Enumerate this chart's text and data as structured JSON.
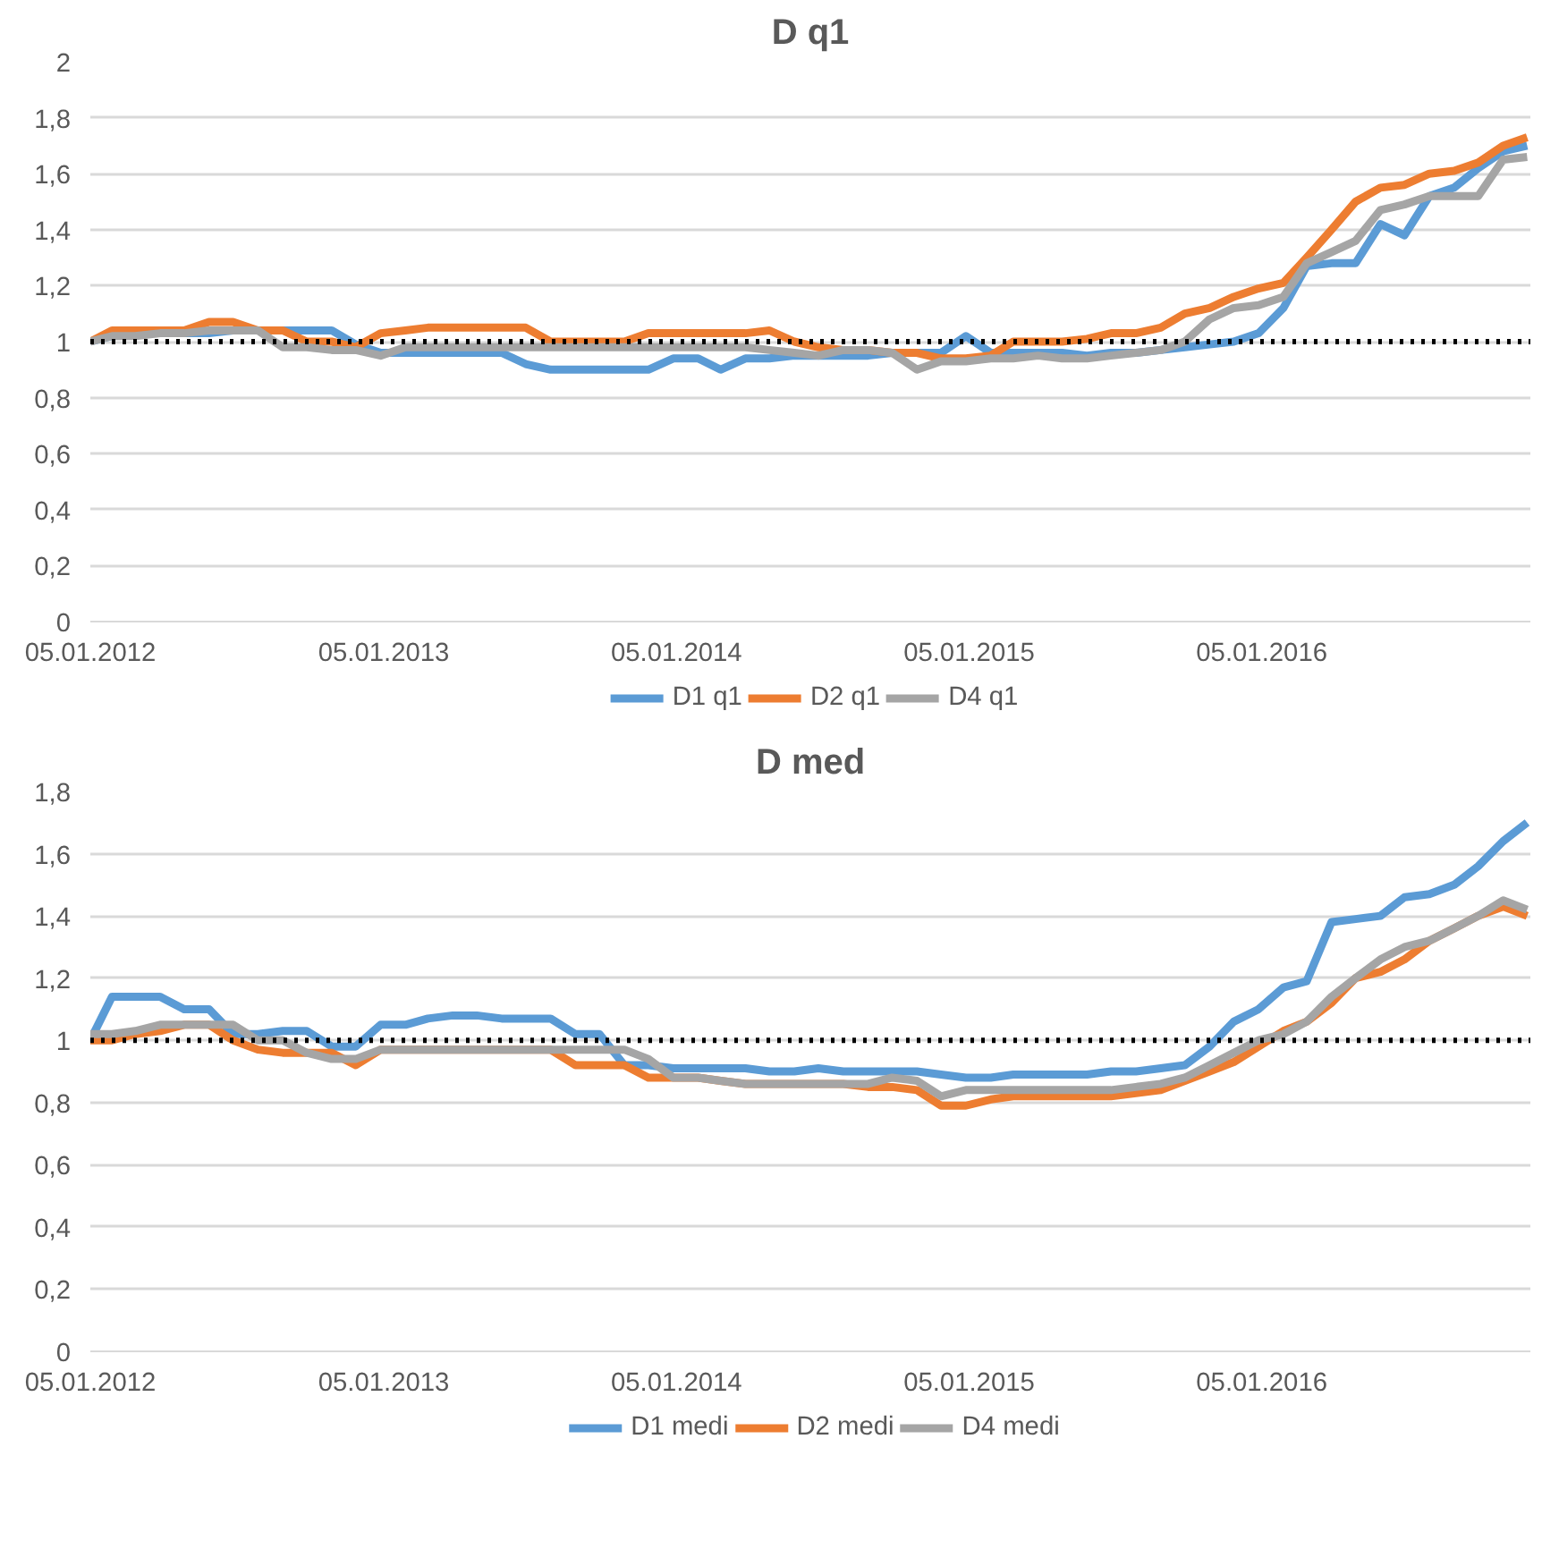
{
  "chart_data": [
    {
      "type": "line",
      "title": "D q1",
      "x": [
        "2012-01-05",
        "2012-02",
        "2012-03",
        "2012-04",
        "2012-05",
        "2012-06",
        "2012-07",
        "2012-08",
        "2012-09",
        "2012-10",
        "2012-11",
        "2012-12",
        "2013-01",
        "2013-02",
        "2013-03",
        "2013-04",
        "2013-05",
        "2013-06",
        "2013-07",
        "2013-08",
        "2013-09",
        "2013-10",
        "2013-11",
        "2013-12",
        "2014-01",
        "2014-02",
        "2014-03",
        "2014-04",
        "2014-05",
        "2014-06",
        "2014-07",
        "2014-08",
        "2014-09",
        "2014-10",
        "2014-11",
        "2014-12",
        "2015-01",
        "2015-02",
        "2015-03",
        "2015-04",
        "2015-05",
        "2015-06",
        "2015-07",
        "2015-08",
        "2015-09",
        "2015-10",
        "2015-11",
        "2015-12",
        "2016-01",
        "2016-02",
        "2016-03",
        "2016-04",
        "2016-05",
        "2016-06",
        "2016-07",
        "2016-08",
        "2016-09",
        "2016-10",
        "2016-11",
        "2016-12"
      ],
      "series": [
        {
          "name": "D1 q1",
          "color": "#5b9bd5",
          "values": [
            1.0,
            1.02,
            1.03,
            1.03,
            1.03,
            1.03,
            1.04,
            1.04,
            1.04,
            1.04,
            1.04,
            0.99,
            0.96,
            0.96,
            0.96,
            0.96,
            0.96,
            0.96,
            0.92,
            0.9,
            0.9,
            0.9,
            0.9,
            0.9,
            0.94,
            0.94,
            0.9,
            0.94,
            0.94,
            0.95,
            0.95,
            0.95,
            0.95,
            0.96,
            0.96,
            0.96,
            1.02,
            0.96,
            0.96,
            0.96,
            0.96,
            0.95,
            0.96,
            0.96,
            0.97,
            0.98,
            0.99,
            1.0,
            1.03,
            1.12,
            1.27,
            1.28,
            1.28,
            1.42,
            1.38,
            1.52,
            1.55,
            1.62,
            1.68,
            1.7
          ]
        },
        {
          "name": "D2 q1",
          "color": "#ed7d31",
          "values": [
            1.0,
            1.04,
            1.04,
            1.04,
            1.04,
            1.07,
            1.07,
            1.04,
            1.04,
            1.0,
            1.0,
            0.98,
            1.03,
            1.04,
            1.05,
            1.05,
            1.05,
            1.05,
            1.05,
            1.0,
            1.0,
            1.0,
            1.0,
            1.03,
            1.03,
            1.03,
            1.03,
            1.03,
            1.04,
            1.0,
            0.98,
            0.97,
            0.97,
            0.96,
            0.96,
            0.94,
            0.94,
            0.95,
            1.0,
            1.0,
            1.0,
            1.01,
            1.03,
            1.03,
            1.05,
            1.1,
            1.12,
            1.16,
            1.19,
            1.21,
            1.3,
            1.4,
            1.5,
            1.55,
            1.56,
            1.6,
            1.61,
            1.64,
            1.7,
            1.73
          ]
        },
        {
          "name": "D4 q1",
          "color": "#a5a5a5",
          "values": [
            1.0,
            1.02,
            1.02,
            1.03,
            1.03,
            1.04,
            1.04,
            1.04,
            0.98,
            0.98,
            0.97,
            0.97,
            0.95,
            0.98,
            0.98,
            0.98,
            0.98,
            0.98,
            0.98,
            0.98,
            0.98,
            0.98,
            0.98,
            0.98,
            0.98,
            0.98,
            0.98,
            0.98,
            0.97,
            0.96,
            0.95,
            0.97,
            0.97,
            0.96,
            0.9,
            0.93,
            0.93,
            0.94,
            0.94,
            0.95,
            0.94,
            0.94,
            0.95,
            0.96,
            0.97,
            1.0,
            1.08,
            1.12,
            1.13,
            1.16,
            1.28,
            1.32,
            1.36,
            1.47,
            1.49,
            1.52,
            1.52,
            1.52,
            1.65,
            1.66
          ]
        }
      ],
      "xlim": [
        "2012-01-05",
        "2016-12-05"
      ],
      "xticks": [
        {
          "value": "2012-01-05",
          "label": "05.01.2012"
        },
        {
          "value": "2013-01-05",
          "label": "05.01.2013"
        },
        {
          "value": "2014-01-05",
          "label": "05.01.2014"
        },
        {
          "value": "2015-01-05",
          "label": "05.01.2015"
        },
        {
          "value": "2016-01-05",
          "label": "05.01.2016"
        }
      ],
      "ylim": [
        0,
        2
      ],
      "yticks": [
        0,
        {
          "value": 0.2,
          "label": "0,2"
        },
        {
          "value": 0.4,
          "label": "0,4"
        },
        {
          "value": 0.6,
          "label": "0,6"
        },
        {
          "value": 0.8,
          "label": "0,8"
        },
        1,
        {
          "value": 1.2,
          "label": "1,2"
        },
        {
          "value": 1.4,
          "label": "1,4"
        },
        {
          "value": 1.6,
          "label": "1,6"
        },
        {
          "value": 1.8,
          "label": "1,8"
        },
        2
      ],
      "ref_lines": [
        {
          "axis": "y",
          "value": 1,
          "color": "#000000",
          "line_style": "dotted"
        }
      ],
      "grid": "y",
      "legend": "bottom",
      "marker": "none",
      "line_style": "solid"
    },
    {
      "type": "line",
      "title": "D med",
      "x": [
        "2012-01-05",
        "2012-02",
        "2012-03",
        "2012-04",
        "2012-05",
        "2012-06",
        "2012-07",
        "2012-08",
        "2012-09",
        "2012-10",
        "2012-11",
        "2012-12",
        "2013-01",
        "2013-02",
        "2013-03",
        "2013-04",
        "2013-05",
        "2013-06",
        "2013-07",
        "2013-08",
        "2013-09",
        "2013-10",
        "2013-11",
        "2013-12",
        "2014-01",
        "2014-02",
        "2014-03",
        "2014-04",
        "2014-05",
        "2014-06",
        "2014-07",
        "2014-08",
        "2014-09",
        "2014-10",
        "2014-11",
        "2014-12",
        "2015-01",
        "2015-02",
        "2015-03",
        "2015-04",
        "2015-05",
        "2015-06",
        "2015-07",
        "2015-08",
        "2015-09",
        "2015-10",
        "2015-11",
        "2015-12",
        "2016-01",
        "2016-02",
        "2016-03",
        "2016-04",
        "2016-05",
        "2016-06",
        "2016-07",
        "2016-08",
        "2016-09",
        "2016-10",
        "2016-11",
        "2016-12"
      ],
      "series": [
        {
          "name": "D1 medi",
          "color": "#5b9bd5",
          "values": [
            1.0,
            1.14,
            1.14,
            1.14,
            1.1,
            1.1,
            1.02,
            1.02,
            1.03,
            1.03,
            0.98,
            0.98,
            1.05,
            1.05,
            1.07,
            1.08,
            1.08,
            1.07,
            1.07,
            1.07,
            1.02,
            1.02,
            0.92,
            0.92,
            0.91,
            0.91,
            0.91,
            0.91,
            0.9,
            0.9,
            0.91,
            0.9,
            0.9,
            0.9,
            0.9,
            0.89,
            0.88,
            0.88,
            0.89,
            0.89,
            0.89,
            0.89,
            0.9,
            0.9,
            0.91,
            0.92,
            0.98,
            1.06,
            1.1,
            1.17,
            1.19,
            1.38,
            1.39,
            1.4,
            1.46,
            1.47,
            1.5,
            1.56,
            1.64,
            1.7
          ]
        },
        {
          "name": "D2 medi",
          "color": "#ed7d31",
          "values": [
            1.0,
            1.0,
            1.02,
            1.03,
            1.05,
            1.05,
            1.0,
            0.97,
            0.96,
            0.96,
            0.96,
            0.92,
            0.97,
            0.97,
            0.97,
            0.97,
            0.97,
            0.97,
            0.97,
            0.97,
            0.92,
            0.92,
            0.92,
            0.88,
            0.88,
            0.88,
            0.87,
            0.86,
            0.86,
            0.86,
            0.86,
            0.86,
            0.85,
            0.85,
            0.84,
            0.79,
            0.79,
            0.81,
            0.82,
            0.82,
            0.82,
            0.82,
            0.82,
            0.83,
            0.84,
            0.87,
            0.9,
            0.93,
            0.98,
            1.03,
            1.06,
            1.12,
            1.2,
            1.22,
            1.26,
            1.32,
            1.36,
            1.4,
            1.43,
            1.4
          ]
        },
        {
          "name": "D4 medi",
          "color": "#a5a5a5",
          "values": [
            1.02,
            1.02,
            1.03,
            1.05,
            1.05,
            1.05,
            1.05,
            1.0,
            1.0,
            0.96,
            0.94,
            0.94,
            0.97,
            0.97,
            0.97,
            0.97,
            0.97,
            0.97,
            0.97,
            0.97,
            0.97,
            0.97,
            0.97,
            0.94,
            0.88,
            0.88,
            0.87,
            0.86,
            0.86,
            0.86,
            0.86,
            0.86,
            0.86,
            0.88,
            0.87,
            0.82,
            0.84,
            0.84,
            0.84,
            0.84,
            0.84,
            0.84,
            0.84,
            0.85,
            0.86,
            0.88,
            0.92,
            0.96,
            1.0,
            1.02,
            1.06,
            1.14,
            1.2,
            1.26,
            1.3,
            1.32,
            1.36,
            1.4,
            1.45,
            1.42
          ]
        }
      ],
      "xlim": [
        "2012-01-05",
        "2016-12-05"
      ],
      "xticks": [
        {
          "value": "2012-01-05",
          "label": "05.01.2012"
        },
        {
          "value": "2013-01-05",
          "label": "05.01.2013"
        },
        {
          "value": "2014-01-05",
          "label": "05.01.2014"
        },
        {
          "value": "2015-01-05",
          "label": "05.01.2015"
        },
        {
          "value": "2016-01-05",
          "label": "05.01.2016"
        }
      ],
      "ylim": [
        0,
        1.8
      ],
      "yticks": [
        0,
        {
          "value": 0.2,
          "label": "0,2"
        },
        {
          "value": 0.4,
          "label": "0,4"
        },
        {
          "value": 0.6,
          "label": "0,6"
        },
        {
          "value": 0.8,
          "label": "0,8"
        },
        1,
        {
          "value": 1.2,
          "label": "1,2"
        },
        {
          "value": 1.4,
          "label": "1,4"
        },
        {
          "value": 1.6,
          "label": "1,6"
        },
        {
          "value": 1.8,
          "label": "1,8"
        }
      ],
      "ref_lines": [
        {
          "axis": "y",
          "value": 1,
          "color": "#000000",
          "line_style": "dotted"
        }
      ],
      "grid": "y",
      "legend": "bottom",
      "marker": "none",
      "line_style": "solid"
    }
  ]
}
